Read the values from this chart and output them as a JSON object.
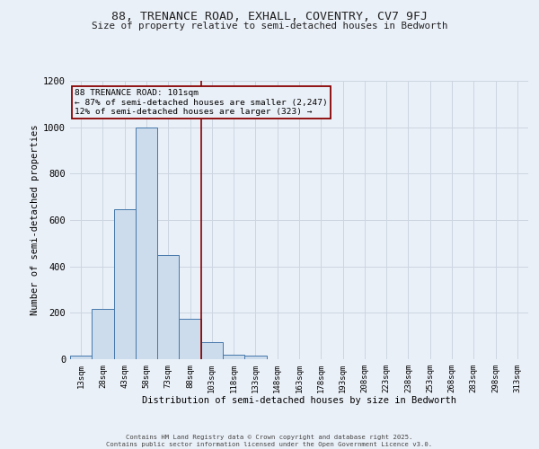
{
  "title1": "88, TRENANCE ROAD, EXHALL, COVENTRY, CV7 9FJ",
  "title2": "Size of property relative to semi-detached houses in Bedworth",
  "xlabel": "Distribution of semi-detached houses by size in Bedworth",
  "ylabel": "Number of semi-detached properties",
  "annotation_line1": "88 TRENANCE ROAD: 101sqm",
  "annotation_line2": "← 87% of semi-detached houses are smaller (2,247)",
  "annotation_line3": "12% of semi-detached houses are larger (323) →",
  "footer1": "Contains HM Land Registry data © Crown copyright and database right 2025.",
  "footer2": "Contains public sector information licensed under the Open Government Licence v3.0.",
  "bar_labels": [
    "13sqm",
    "28sqm",
    "43sqm",
    "58sqm",
    "73sqm",
    "88sqm",
    "103sqm",
    "118sqm",
    "133sqm",
    "148sqm",
    "163sqm",
    "178sqm",
    "193sqm",
    "208sqm",
    "223sqm",
    "238sqm",
    "253sqm",
    "268sqm",
    "283sqm",
    "298sqm",
    "313sqm"
  ],
  "bar_values": [
    15,
    215,
    648,
    1000,
    450,
    175,
    75,
    20,
    15,
    0,
    0,
    0,
    0,
    0,
    0,
    0,
    0,
    0,
    0,
    0,
    0
  ],
  "bar_color": "#ccdcec",
  "bar_edge_color": "#4477aa",
  "grid_color": "#ccd5e0",
  "background_color": "#eaf0f8",
  "vline_index": 5,
  "vline_color": "#880000",
  "annotation_box_edge_color": "#880000",
  "ylim": [
    0,
    1200
  ],
  "yticks": [
    0,
    200,
    400,
    600,
    800,
    1000,
    1200
  ]
}
